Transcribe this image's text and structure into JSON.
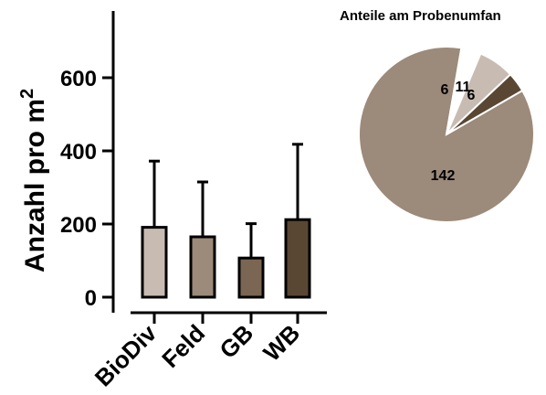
{
  "chart_data": [
    {
      "type": "bar",
      "ylabel": "Anzahl pro m",
      "ylabel_superscript": "2",
      "categories": [
        "BioDiv",
        "Feld",
        "GB",
        "WB"
      ],
      "values": [
        191,
        165,
        107,
        212
      ],
      "error_upper": [
        372,
        315,
        201,
        418
      ],
      "ylim": [
        0,
        700
      ],
      "yticks": [
        0,
        200,
        400,
        600
      ],
      "colors": [
        "#c8bcb2",
        "#9c8a7a",
        "#7a6652",
        "#5a4733"
      ],
      "grid": false
    },
    {
      "type": "pie",
      "title": "Anteile am Probenumfan",
      "values": [
        142,
        6,
        11,
        6
      ],
      "labels": [
        "142",
        "6",
        "11",
        "6"
      ],
      "colors": [
        "#9c8a7a",
        "#ffffff",
        "#c8bcb2",
        "#5a4733"
      ]
    }
  ]
}
